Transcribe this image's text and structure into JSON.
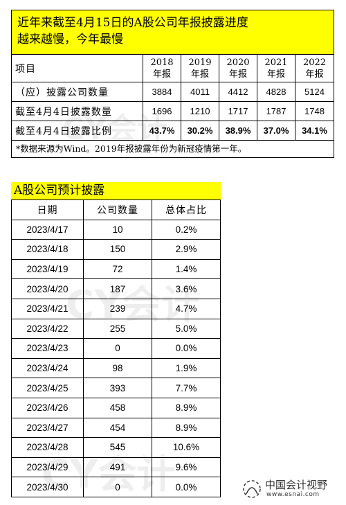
{
  "watermark": "CY会计",
  "table1": {
    "title_line1": "近年来截至4月15日的A股公司年报披露进度",
    "title_line2": "越来越慢，今年最慢",
    "header_label": "项目",
    "years": [
      {
        "year": "2018",
        "suffix": "年报"
      },
      {
        "year": "2019",
        "suffix": "年报"
      },
      {
        "year": "2020",
        "suffix": "年报"
      },
      {
        "year": "2021",
        "suffix": "年报"
      },
      {
        "year": "2022",
        "suffix": "年报"
      }
    ],
    "rows": [
      {
        "label": "（应）披露公司数量",
        "values": [
          "3884",
          "4011",
          "4412",
          "4828",
          "5124"
        ]
      },
      {
        "label": "截至4月4日披露数量",
        "values": [
          "1696",
          "1210",
          "1717",
          "1787",
          "1748"
        ]
      },
      {
        "label": "截至4月4日披露比例",
        "values": [
          "43.7%",
          "30.2%",
          "38.9%",
          "37.0%",
          "34.1%"
        ]
      }
    ],
    "note": "*数据来源为Wind。2019年报披露年份为新冠疫情第一年。"
  },
  "table2": {
    "title": "A股公司预计披露",
    "headers": [
      "日期",
      "公司数量",
      "总体占比"
    ],
    "rows": [
      [
        "2023/4/17",
        "10",
        "0.2%"
      ],
      [
        "2023/4/18",
        "150",
        "2.9%"
      ],
      [
        "2023/4/19",
        "72",
        "1.4%"
      ],
      [
        "2023/4/20",
        "187",
        "3.6%"
      ],
      [
        "2023/4/21",
        "239",
        "4.7%"
      ],
      [
        "2023/4/22",
        "255",
        "5.0%"
      ],
      [
        "2023/4/23",
        "0",
        "0.0%"
      ],
      [
        "2023/4/24",
        "98",
        "1.9%"
      ],
      [
        "2023/4/25",
        "393",
        "7.7%"
      ],
      [
        "2023/4/26",
        "458",
        "8.9%"
      ],
      [
        "2023/4/27",
        "454",
        "8.9%"
      ],
      [
        "2023/4/28",
        "545",
        "10.6%"
      ],
      [
        "2023/4/29",
        "491",
        "9.6%"
      ],
      [
        "2023/4/30",
        "0",
        "0.0%"
      ]
    ]
  },
  "logo": {
    "name": "中国会计视野",
    "url": "www.esnai.com"
  },
  "colors": {
    "title_bg": "#ffff00",
    "border": "#000000"
  }
}
